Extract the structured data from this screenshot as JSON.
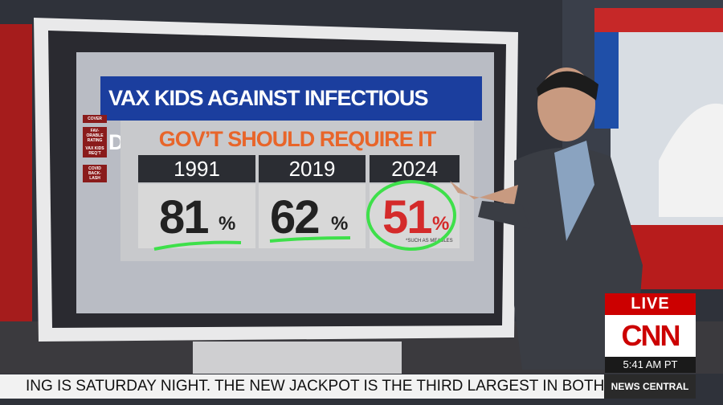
{
  "graphic": {
    "title": "VAX KIDS AGAINST INFECTIOUS DISEASES*",
    "subtitle": "GOV’T SHOULD REQUIRE IT",
    "columns": [
      {
        "year": "1991",
        "value": "81",
        "unit": "%"
      },
      {
        "year": "2019",
        "value": "62",
        "unit": "%"
      },
      {
        "year": "2024",
        "value": "51",
        "unit": "%"
      }
    ],
    "footnote": "*SUCH AS MEASLES",
    "sidebar": [
      "COVER",
      "FAV-ORABLE RATING",
      "VAX KIDS REQ’T",
      "COVID BACK-LASH"
    ]
  },
  "broadcast": {
    "live": "LIVE",
    "network": "CNN",
    "time": "5:41 AM PT",
    "show": "NEWS CENTRAL",
    "ticker": "ING IS SATURDAY NIGHT. THE NEW JACKPOT IS THE THIRD LARGEST IN BOTH POWERE"
  }
}
